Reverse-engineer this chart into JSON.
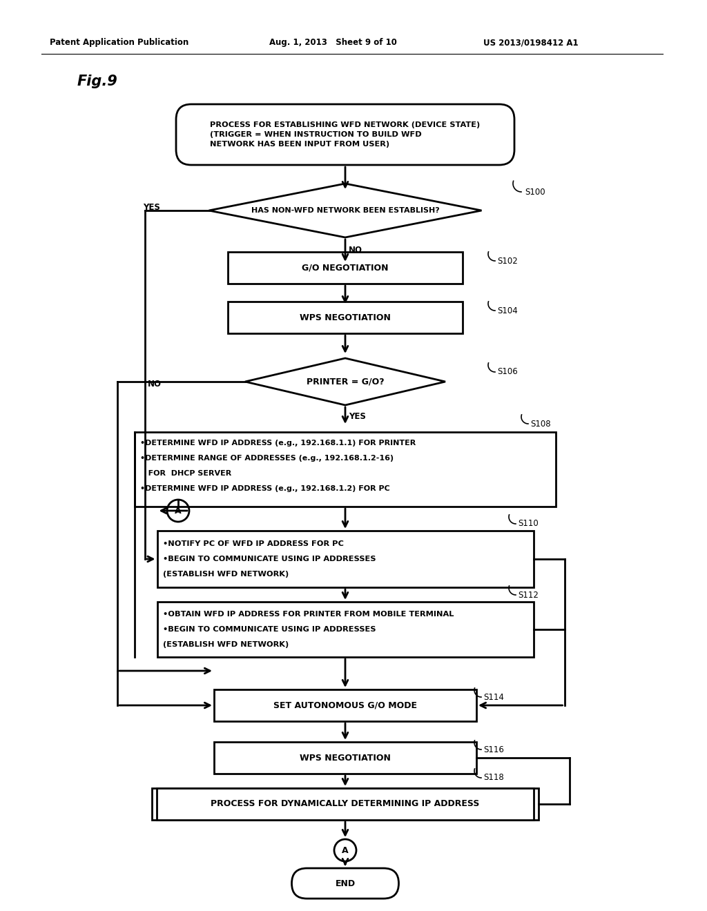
{
  "bg_color": "#ffffff",
  "header_left": "Patent Application Publication",
  "header_mid": "Aug. 1, 2013   Sheet 9 of 10",
  "header_right": "US 2013/0198412 A1",
  "fig_label": "Fig.9",
  "start_box": "PROCESS FOR ESTABLISHING WFD NETWORK (DEVICE STATE)\n(TRIGGER = WHEN INSTRUCTION TO BUILD WFD\nNETWORK HAS BEEN INPUT FROM USER)",
  "diamond_s100": "HAS NON-WFD NETWORK BEEN ESTABLISH?",
  "label_s100": "S100",
  "label_yes_s100": "YES",
  "label_no_s100": "NO",
  "rect_s102": "G/O NEGOTIATION",
  "label_s102": "S102",
  "rect_s104": "WPS NEGOTIATION",
  "label_s104": "S104",
  "diamond_s106": "PRINTER = G/O?",
  "label_s106": "S106",
  "label_no_s106": "NO",
  "label_yes_s106": "YES",
  "rect_s108_l1": "•DETERMINE WFD IP ADDRESS (e.g., 192.168.1.1) FOR PRINTER",
  "rect_s108_l2": "•DETERMINE RANGE OF ADDRESSES (e.g., 192.168.1.2-16)",
  "rect_s108_l3": "   FOR  DHCP SERVER",
  "rect_s108_l4": "•DETERMINE WFD IP ADDRESS (e.g., 192.168.1.2) FOR PC",
  "label_s108": "S108",
  "connector_a": "A",
  "rect_s110_l1": "•NOTIFY PC OF WFD IP ADDRESS FOR PC",
  "rect_s110_l2": "•BEGIN TO COMMUNICATE USING IP ADDRESSES",
  "rect_s110_l3": "(ESTABLISH WFD NETWORK)",
  "label_s110": "S110",
  "rect_s112_l1": "•OBTAIN WFD IP ADDRESS FOR PRINTER FROM MOBILE TERMINAL",
  "rect_s112_l2": "•BEGIN TO COMMUNICATE USING IP ADDRESSES",
  "rect_s112_l3": "(ESTABLISH WFD NETWORK)",
  "label_s112": "S112",
  "rect_s114": "SET AUTONOMOUS G/O MODE",
  "label_s114": "S114",
  "rect_s116": "WPS NEGOTIATION",
  "label_s116": "S116",
  "rect_s118": "PROCESS FOR DYNAMICALLY DETERMINING IP ADDRESS",
  "label_s118": "S118",
  "end_box": "END"
}
